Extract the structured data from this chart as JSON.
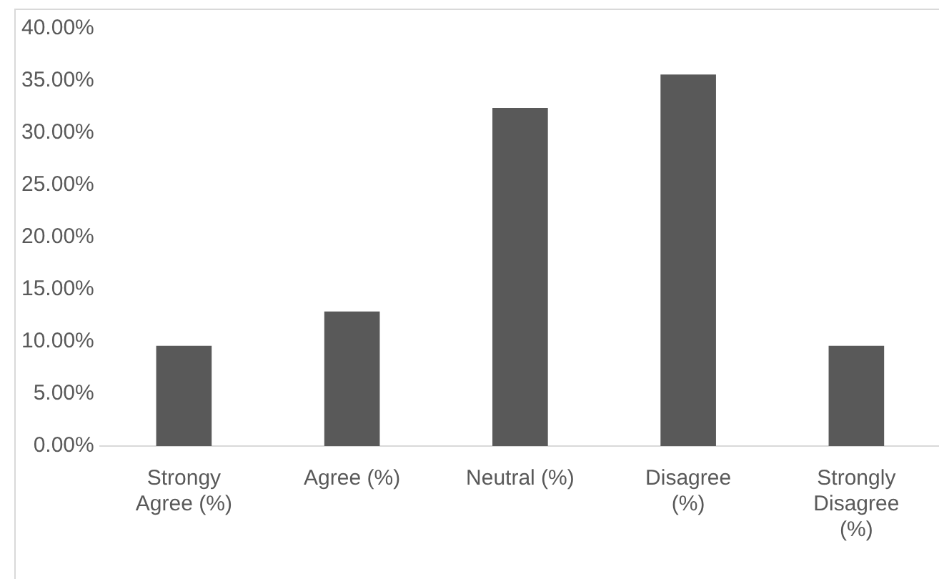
{
  "chart_data": {
    "type": "bar",
    "categories": [
      "Strongy Agree (%)",
      "Agree (%)",
      "Neutral (%)",
      "Disagree (%)",
      "Strongly Disagree (%)"
    ],
    "values": [
      9.6,
      12.9,
      32.4,
      35.6,
      9.6
    ],
    "color": "#595959",
    "ylim": [
      0,
      40
    ],
    "yticks": [
      {
        "value": 0,
        "label": "0.00%"
      },
      {
        "value": 5,
        "label": "5.00%"
      },
      {
        "value": 10,
        "label": "10.00%"
      },
      {
        "value": 15,
        "label": "15.00%"
      },
      {
        "value": 20,
        "label": "20.00%"
      },
      {
        "value": 25,
        "label": "25.00%"
      },
      {
        "value": 30,
        "label": "30.00%"
      },
      {
        "value": 35,
        "label": "35.00%"
      },
      {
        "value": 40,
        "label": "40.00%"
      }
    ],
    "grid": false,
    "legend": false
  }
}
